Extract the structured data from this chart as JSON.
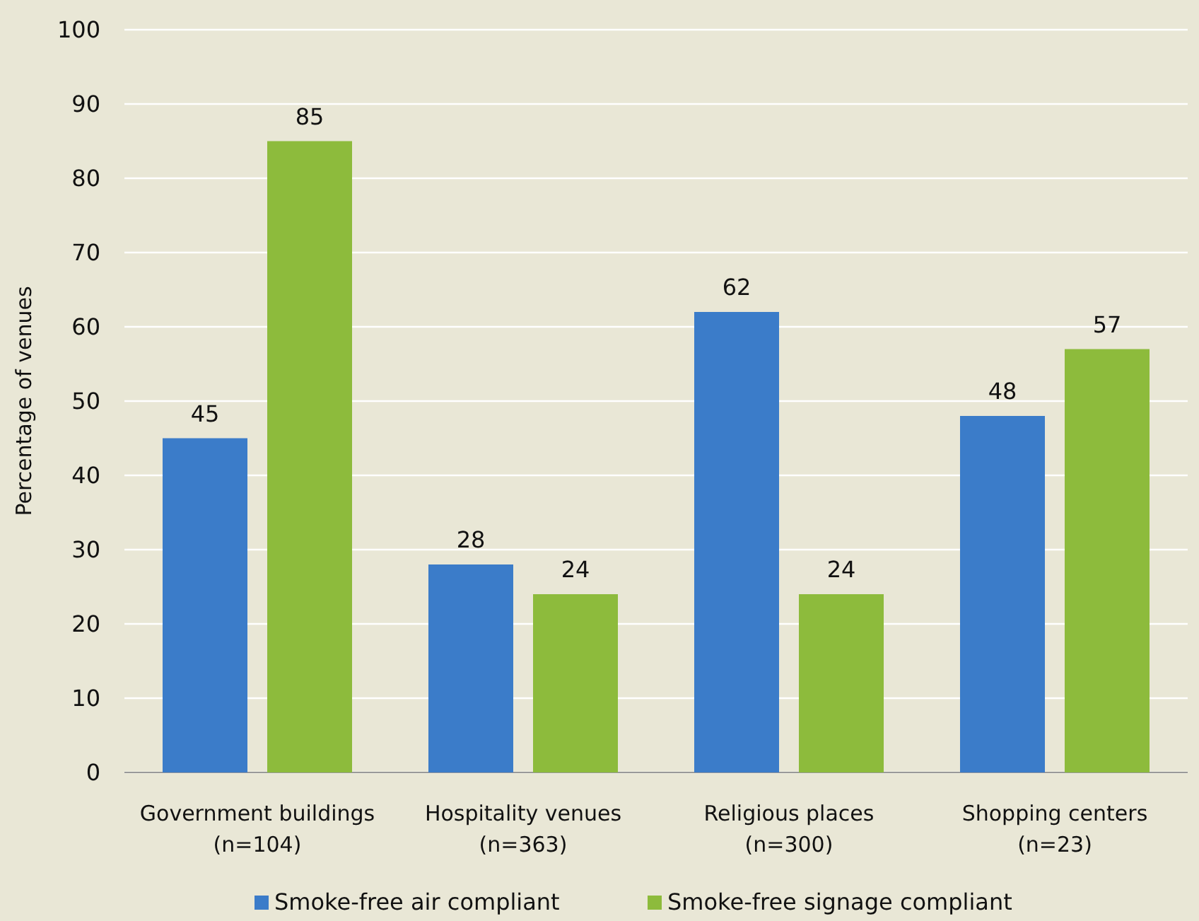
{
  "chart_data": {
    "type": "bar",
    "ylabel": "Percentage of venues",
    "categories": [
      "Government buildings\n(n=104)",
      "Hospitality venues\n(n=363)",
      "Religious places\n(n=300)",
      "Shopping centers\n(n=23)"
    ],
    "series": [
      {
        "name": "Smoke-free air compliant",
        "color": "#3b7cc9",
        "values": [
          45,
          28,
          62,
          48
        ]
      },
      {
        "name": "Smoke-free signage compliant",
        "color": "#8dbb3c",
        "values": [
          85,
          24,
          24,
          57
        ]
      }
    ],
    "ylim": [
      0,
      100
    ],
    "yticks": [
      0,
      10,
      20,
      30,
      40,
      50,
      60,
      70,
      80,
      90,
      100
    ],
    "grid": "y",
    "legend": "bottom",
    "data_labels": true
  }
}
